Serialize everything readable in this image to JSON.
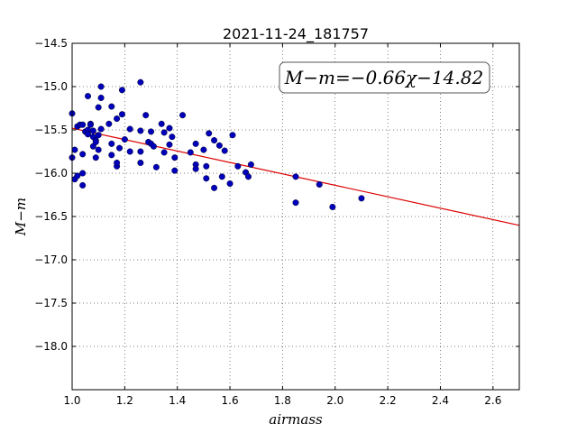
{
  "chart_data": {
    "type": "scatter",
    "title": "2021-11-24_181757",
    "xlabel": "airmass",
    "ylabel": "M−m",
    "xlim": [
      1.0,
      2.7
    ],
    "ylim": [
      -18.5,
      -14.5
    ],
    "y_inverted": true,
    "grid": true,
    "x_ticks": [
      "1.0",
      "1.2",
      "1.4",
      "1.6",
      "1.8",
      "2.0",
      "2.2",
      "2.4",
      "2.6"
    ],
    "y_ticks": [
      "−14.5",
      "−15.0",
      "−15.5",
      "−16.0",
      "−16.5",
      "−17.0",
      "−17.5",
      "−18.0"
    ],
    "annotation": "M−m=−0.66χ−14.82",
    "fit": {
      "slope": -0.66,
      "intercept": -14.82,
      "color": "#dd0000"
    },
    "point_color": "#0000bb",
    "points": [
      [
        1.0,
        -15.31
      ],
      [
        1.0,
        -15.82
      ],
      [
        1.01,
        -16.07
      ],
      [
        1.01,
        -15.73
      ],
      [
        1.02,
        -15.46
      ],
      [
        1.02,
        -16.03
      ],
      [
        1.03,
        -15.44
      ],
      [
        1.04,
        -15.44
      ],
      [
        1.04,
        -16.0
      ],
      [
        1.04,
        -16.14
      ],
      [
        1.04,
        -15.78
      ],
      [
        1.05,
        -15.52
      ],
      [
        1.06,
        -15.11
      ],
      [
        1.06,
        -15.5
      ],
      [
        1.06,
        -15.55
      ],
      [
        1.07,
        -15.43
      ],
      [
        1.07,
        -15.44
      ],
      [
        1.08,
        -15.51
      ],
      [
        1.08,
        -15.58
      ],
      [
        1.08,
        -15.69
      ],
      [
        1.09,
        -15.62
      ],
      [
        1.09,
        -15.82
      ],
      [
        1.09,
        -15.64
      ],
      [
        1.1,
        -15.56
      ],
      [
        1.1,
        -15.73
      ],
      [
        1.1,
        -15.24
      ],
      [
        1.11,
        -15.13
      ],
      [
        1.11,
        -15.0
      ],
      [
        1.11,
        -15.49
      ],
      [
        1.14,
        -15.43
      ],
      [
        1.15,
        -15.23
      ],
      [
        1.15,
        -15.66
      ],
      [
        1.15,
        -15.79
      ],
      [
        1.17,
        -15.92
      ],
      [
        1.17,
        -15.37
      ],
      [
        1.17,
        -15.88
      ],
      [
        1.18,
        -15.71
      ],
      [
        1.19,
        -15.32
      ],
      [
        1.19,
        -15.04
      ],
      [
        1.2,
        -15.61
      ],
      [
        1.22,
        -15.49
      ],
      [
        1.22,
        -15.75
      ],
      [
        1.26,
        -14.95
      ],
      [
        1.26,
        -15.51
      ],
      [
        1.26,
        -15.75
      ],
      [
        1.26,
        -15.88
      ],
      [
        1.28,
        -15.33
      ],
      [
        1.29,
        -15.64
      ],
      [
        1.3,
        -15.66
      ],
      [
        1.3,
        -15.52
      ],
      [
        1.31,
        -15.69
      ],
      [
        1.32,
        -15.93
      ],
      [
        1.34,
        -15.43
      ],
      [
        1.35,
        -15.53
      ],
      [
        1.35,
        -15.76
      ],
      [
        1.37,
        -15.48
      ],
      [
        1.37,
        -15.67
      ],
      [
        1.38,
        -15.58
      ],
      [
        1.39,
        -15.82
      ],
      [
        1.39,
        -15.97
      ],
      [
        1.42,
        -15.33
      ],
      [
        1.45,
        -15.76
      ],
      [
        1.47,
        -15.66
      ],
      [
        1.47,
        -15.9
      ],
      [
        1.47,
        -15.95
      ],
      [
        1.5,
        -15.73
      ],
      [
        1.51,
        -15.92
      ],
      [
        1.51,
        -16.06
      ],
      [
        1.52,
        -15.54
      ],
      [
        1.54,
        -15.62
      ],
      [
        1.54,
        -16.17
      ],
      [
        1.56,
        -15.68
      ],
      [
        1.57,
        -16.04
      ],
      [
        1.58,
        -15.74
      ],
      [
        1.6,
        -16.12
      ],
      [
        1.61,
        -15.56
      ],
      [
        1.63,
        -15.92
      ],
      [
        1.66,
        -15.99
      ],
      [
        1.67,
        -16.04
      ],
      [
        1.68,
        -15.9
      ],
      [
        1.85,
        -16.04
      ],
      [
        1.85,
        -16.34
      ],
      [
        1.94,
        -16.13
      ],
      [
        1.99,
        -16.39
      ],
      [
        2.1,
        -16.29
      ]
    ]
  }
}
